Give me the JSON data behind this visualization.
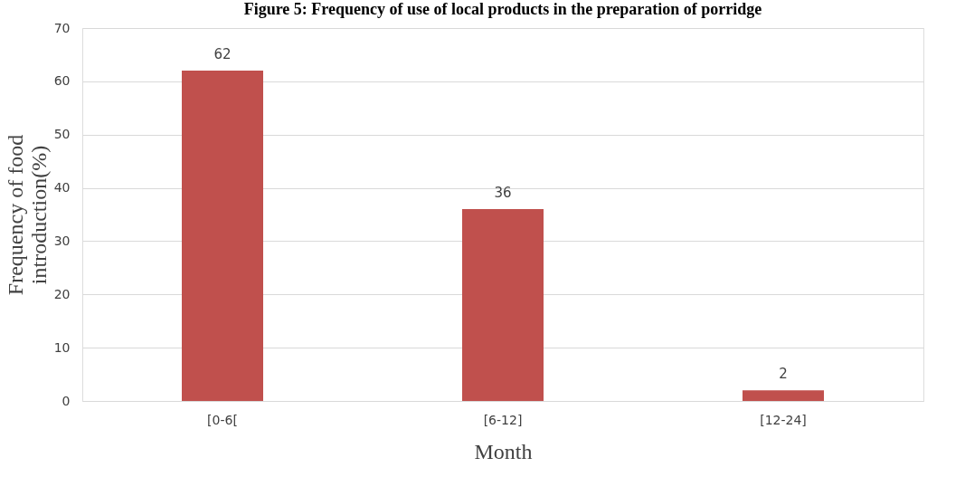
{
  "chart_data": {
    "type": "bar",
    "title": "Figure 5: Frequency of use of local products in the preparation of porridge",
    "xlabel": "Month",
    "ylabel": "Frequency of food introduction(%)",
    "categories": [
      "[0-6[",
      "[6-12]",
      "[12-24]"
    ],
    "values": [
      62,
      36,
      2
    ],
    "color": "#c0504d",
    "ylim": [
      0,
      70
    ],
    "yticks": [
      0,
      10,
      20,
      30,
      40,
      50,
      60,
      70
    ],
    "grid": "y",
    "data_labels": true
  }
}
